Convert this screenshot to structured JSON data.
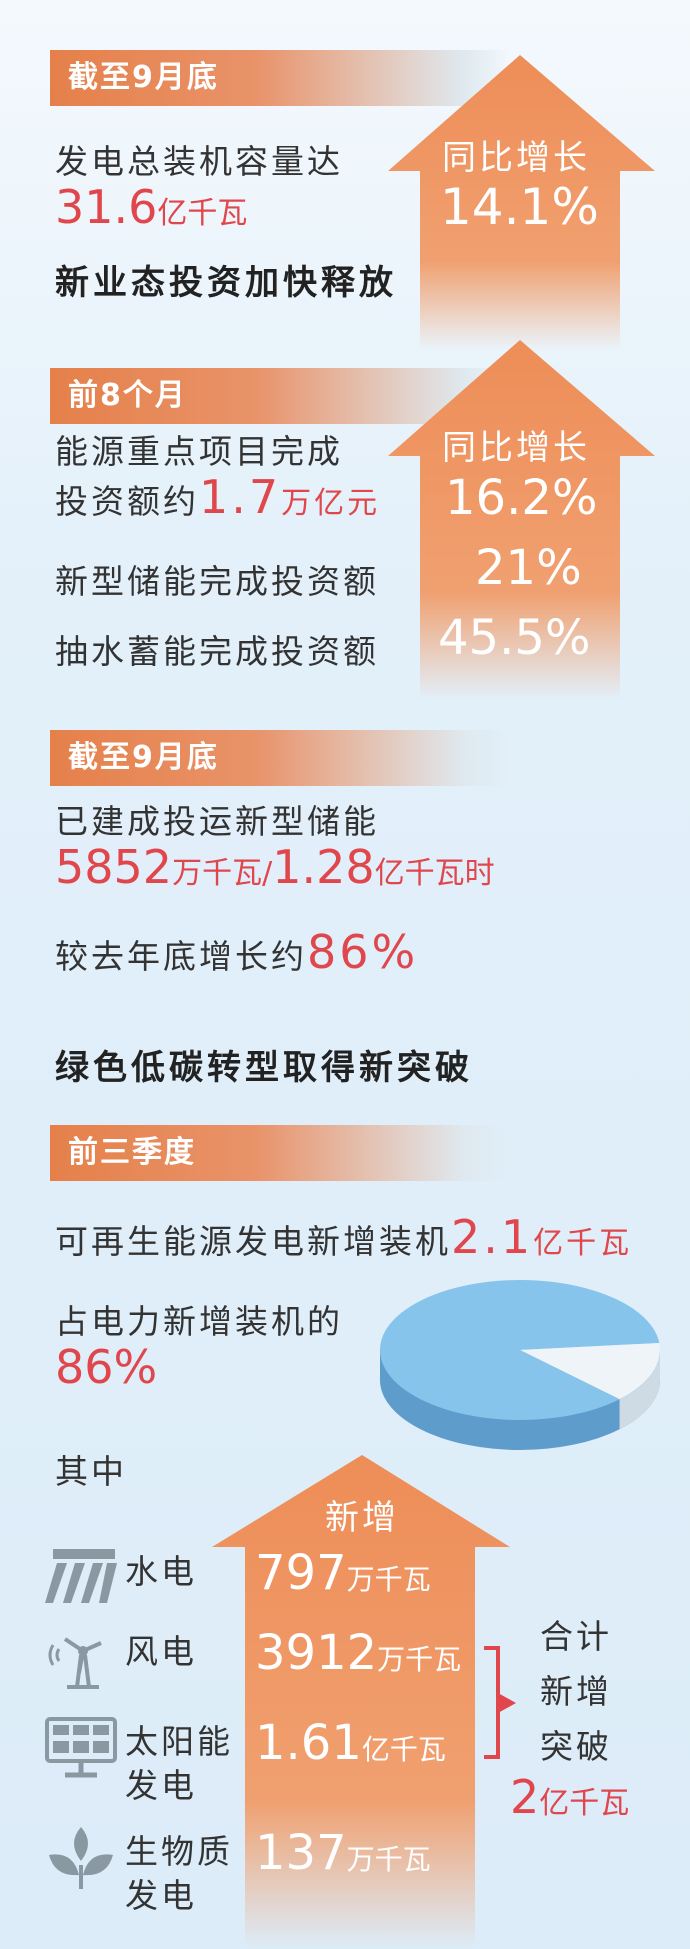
{
  "colors": {
    "accent_orange": "#e5804a",
    "highlight_red": "#e0474c",
    "pie_blue": "#7fbfe8",
    "background": "#dcecf8"
  },
  "section1": {
    "banner": "截至9月底",
    "label": "发电总装机容量达",
    "value": "31.6",
    "unit": "亿千瓦",
    "arrow": {
      "label": "同比增长",
      "value": "14.1%"
    }
  },
  "heading1": "新业态投资加快释放",
  "section2": {
    "banner": "前8个月",
    "arrow_label": "同比增长",
    "rows": [
      {
        "line1": "能源重点项目完成",
        "line2_prefix": "投资额约",
        "value": "1.7",
        "unit": "万亿元",
        "growth": "16.2%"
      },
      {
        "label": "新型储能完成投资额",
        "growth": "21%"
      },
      {
        "label": "抽水蓄能完成投资额",
        "growth": "45.5%"
      }
    ]
  },
  "section3": {
    "banner": "截至9月底",
    "label": "已建成投运新型储能",
    "value1": "5852",
    "unit1": "万千瓦/",
    "value2": "1.28",
    "unit2": "亿千瓦时",
    "growth_prefix": "较去年底增长约",
    "growth_value": "86%"
  },
  "heading2": "绿色低碳转型取得新突破",
  "section4": {
    "banner": "前三季度",
    "renewable_prefix": "可再生能源发电新增装机",
    "renewable_value": "2.1",
    "renewable_unit": "亿千瓦",
    "share_label": "占电力新增装机的",
    "share_value": "86%",
    "pie": {
      "share_percent": 86
    },
    "among": "其中",
    "arrow_label": "新增",
    "items": [
      {
        "icon": "hydro-dam-icon",
        "label1": "水电",
        "label2": "",
        "value": "797",
        "unit": "万千瓦"
      },
      {
        "icon": "wind-turbine-icon",
        "label1": "风电",
        "label2": "",
        "value": "3912",
        "unit": "万千瓦"
      },
      {
        "icon": "solar-panel-icon",
        "label1": "太阳能",
        "label2": "发电",
        "value": "1.61",
        "unit": "亿千瓦"
      },
      {
        "icon": "biomass-leaf-icon",
        "label1": "生物质",
        "label2": "发电",
        "value": "137",
        "unit": "万千瓦"
      }
    ],
    "total": {
      "line1": "合计",
      "line2": "新增",
      "line3": "突破",
      "value": "2",
      "unit": "亿千瓦"
    }
  }
}
